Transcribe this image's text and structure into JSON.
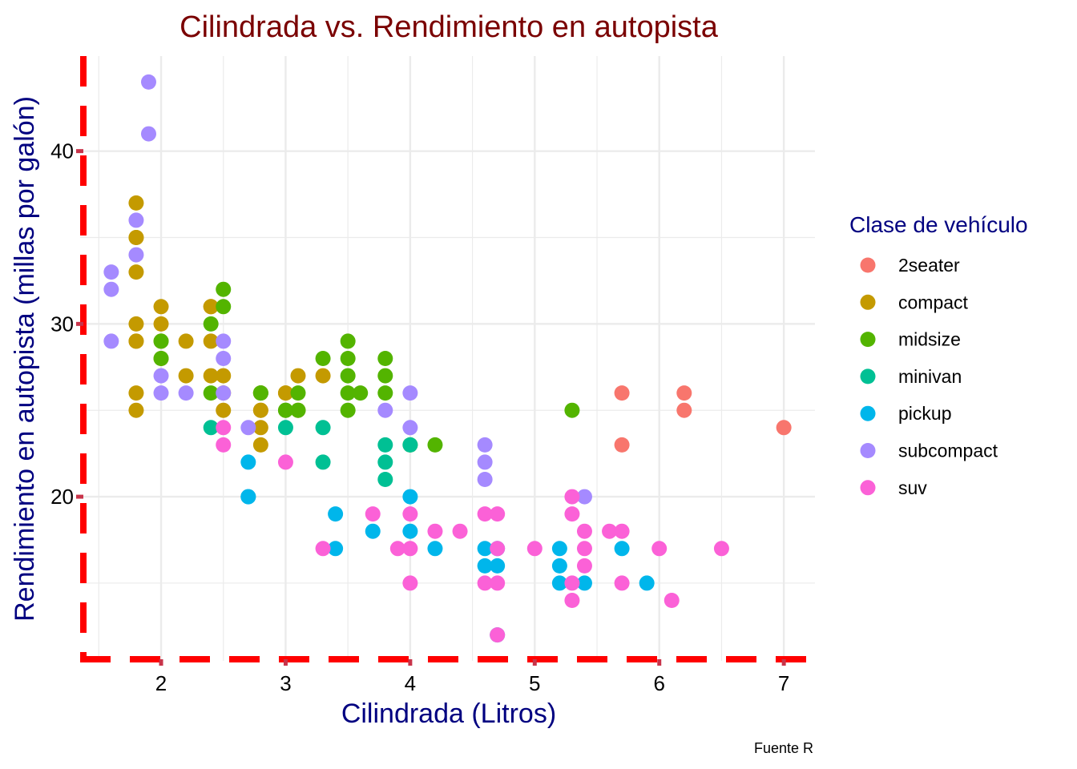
{
  "chart_data": {
    "type": "scatter",
    "title": "Cilindrada vs. Rendimiento en autopista",
    "xlabel": "Cilindrada (Litros)",
    "ylabel": "Rendimiento en autopista  (millas por galón)",
    "caption": "Fuente R",
    "legend_title": "Clase de vehículo",
    "legend_position": "right",
    "xlim": [
      1.35,
      7.25
    ],
    "ylim": [
      10.5,
      45.5
    ],
    "x_ticks": [
      2,
      3,
      4,
      5,
      6,
      7
    ],
    "y_ticks": [
      20,
      30,
      40
    ],
    "grid": true,
    "colors": {
      "title": "#7A0000",
      "axis_label": "#000080",
      "legend_title": "#000080",
      "border": "#FF0000",
      "grid": "#EBEBEB"
    },
    "series": [
      {
        "name": "2seater",
        "color": "#F8766D",
        "points": [
          [
            5.7,
            26
          ],
          [
            5.7,
            23
          ],
          [
            6.2,
            26
          ],
          [
            6.2,
            25
          ],
          [
            7.0,
            24
          ]
        ]
      },
      {
        "name": "compact",
        "color": "#C49A00",
        "points": [
          [
            1.8,
            29
          ],
          [
            1.8,
            29
          ],
          [
            2.0,
            31
          ],
          [
            2.0,
            30
          ],
          [
            2.8,
            26
          ],
          [
            2.8,
            26
          ],
          [
            3.1,
            27
          ],
          [
            1.8,
            26
          ],
          [
            1.8,
            25
          ],
          [
            2.0,
            28
          ],
          [
            2.0,
            29
          ],
          [
            2.8,
            25
          ],
          [
            2.8,
            25
          ],
          [
            3.1,
            25
          ],
          [
            2.2,
            27
          ],
          [
            2.2,
            29
          ],
          [
            2.4,
            31
          ],
          [
            2.4,
            31
          ],
          [
            3.0,
            26
          ],
          [
            1.8,
            33
          ],
          [
            1.8,
            37
          ],
          [
            1.8,
            35
          ],
          [
            1.8,
            30
          ],
          [
            2.4,
            29
          ],
          [
            2.4,
            27
          ],
          [
            2.5,
            26
          ],
          [
            2.8,
            24
          ],
          [
            2.8,
            23
          ],
          [
            3.0,
            26
          ],
          [
            3.3,
            27
          ],
          [
            2.5,
            25
          ],
          [
            2.5,
            27
          ],
          [
            1.8,
            35
          ]
        ]
      },
      {
        "name": "midsize",
        "color": "#53B400",
        "points": [
          [
            2.4,
            30
          ],
          [
            2.4,
            26
          ],
          [
            2.5,
            32
          ],
          [
            2.5,
            31
          ],
          [
            2.8,
            26
          ],
          [
            3.0,
            25
          ],
          [
            3.1,
            26
          ],
          [
            3.1,
            25
          ],
          [
            3.3,
            28
          ],
          [
            3.5,
            29
          ],
          [
            3.5,
            28
          ],
          [
            3.5,
            27
          ],
          [
            3.5,
            26
          ],
          [
            3.5,
            25
          ],
          [
            3.6,
            26
          ],
          [
            3.8,
            28
          ],
          [
            3.8,
            27
          ],
          [
            3.8,
            26
          ],
          [
            4.0,
            23
          ],
          [
            4.2,
            23
          ],
          [
            5.3,
            25
          ],
          [
            2.0,
            29
          ],
          [
            2.0,
            28
          ],
          [
            2.8,
            26
          ],
          [
            3.0,
            25
          ]
        ]
      },
      {
        "name": "minivan",
        "color": "#00C094",
        "points": [
          [
            2.4,
            24
          ],
          [
            3.0,
            24
          ],
          [
            3.3,
            24
          ],
          [
            3.3,
            22
          ],
          [
            3.8,
            23
          ],
          [
            3.8,
            22
          ],
          [
            3.8,
            21
          ],
          [
            4.0,
            23
          ]
        ]
      },
      {
        "name": "pickup",
        "color": "#00B6EB",
        "points": [
          [
            2.7,
            22
          ],
          [
            2.7,
            20
          ],
          [
            2.7,
            20
          ],
          [
            3.4,
            19
          ],
          [
            3.4,
            17
          ],
          [
            3.7,
            18
          ],
          [
            4.0,
            20
          ],
          [
            4.0,
            18
          ],
          [
            4.2,
            17
          ],
          [
            4.6,
            17
          ],
          [
            4.6,
            16
          ],
          [
            4.7,
            17
          ],
          [
            4.7,
            16
          ],
          [
            4.7,
            12
          ],
          [
            5.2,
            17
          ],
          [
            5.2,
            16
          ],
          [
            5.2,
            15
          ],
          [
            5.4,
            15
          ],
          [
            5.7,
            17
          ],
          [
            5.9,
            15
          ]
        ]
      },
      {
        "name": "subcompact",
        "color": "#A58AFF",
        "points": [
          [
            1.6,
            33
          ],
          [
            1.6,
            32
          ],
          [
            1.6,
            29
          ],
          [
            1.8,
            34
          ],
          [
            1.8,
            36
          ],
          [
            1.9,
            44
          ],
          [
            1.9,
            41
          ],
          [
            2.0,
            27
          ],
          [
            2.0,
            26
          ],
          [
            2.2,
            26
          ],
          [
            2.5,
            29
          ],
          [
            2.5,
            28
          ],
          [
            2.5,
            26
          ],
          [
            2.7,
            24
          ],
          [
            3.8,
            25
          ],
          [
            4.0,
            26
          ],
          [
            4.0,
            24
          ],
          [
            4.6,
            23
          ],
          [
            4.6,
            22
          ],
          [
            4.6,
            21
          ],
          [
            5.4,
            20
          ]
        ]
      },
      {
        "name": "suv",
        "color": "#FB61D7",
        "points": [
          [
            2.5,
            24
          ],
          [
            2.5,
            23
          ],
          [
            3.0,
            22
          ],
          [
            3.3,
            17
          ],
          [
            3.7,
            19
          ],
          [
            3.9,
            17
          ],
          [
            4.0,
            19
          ],
          [
            4.0,
            17
          ],
          [
            4.0,
            15
          ],
          [
            4.2,
            18
          ],
          [
            4.4,
            18
          ],
          [
            4.6,
            19
          ],
          [
            4.6,
            15
          ],
          [
            4.7,
            19
          ],
          [
            4.7,
            17
          ],
          [
            4.7,
            15
          ],
          [
            4.7,
            12
          ],
          [
            5.0,
            17
          ],
          [
            5.3,
            20
          ],
          [
            5.3,
            19
          ],
          [
            5.3,
            15
          ],
          [
            5.3,
            14
          ],
          [
            5.4,
            18
          ],
          [
            5.4,
            17
          ],
          [
            5.4,
            16
          ],
          [
            5.6,
            18
          ],
          [
            5.7,
            18
          ],
          [
            5.7,
            15
          ],
          [
            6.0,
            17
          ],
          [
            6.1,
            14
          ],
          [
            6.5,
            17
          ]
        ]
      }
    ]
  }
}
